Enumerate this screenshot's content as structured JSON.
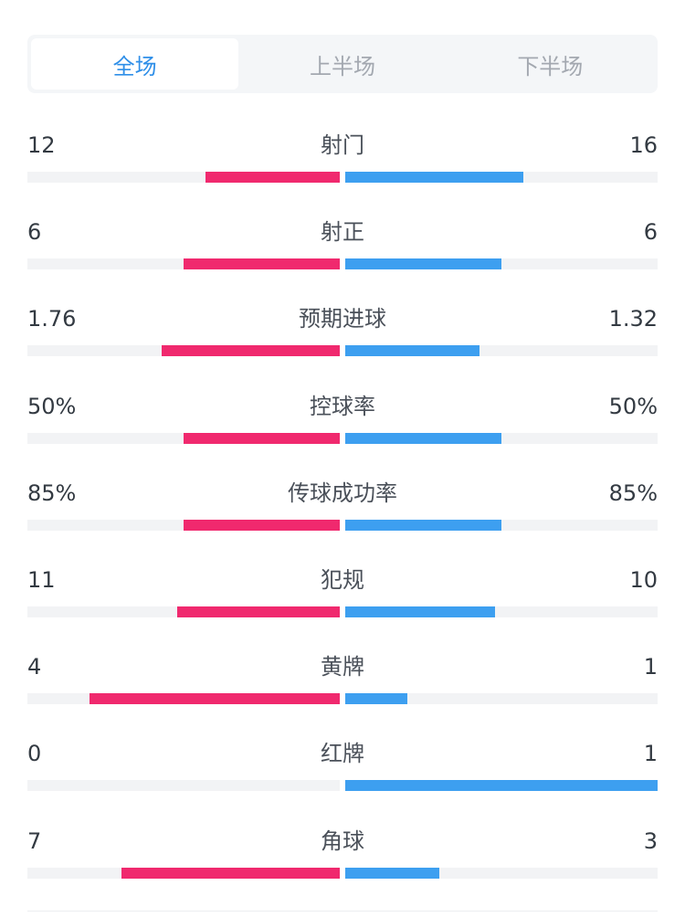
{
  "tabs": [
    {
      "label": "全场",
      "active": true
    },
    {
      "label": "上半场",
      "active": false
    },
    {
      "label": "下半场",
      "active": false
    }
  ],
  "colors": {
    "home": "#f0296e",
    "away": "#3d9ff0",
    "active_tab": "#2f8fe8"
  },
  "stats": [
    {
      "label": "射门",
      "home": "12",
      "away": "16",
      "home_fill": 0.43,
      "away_fill": 0.57
    },
    {
      "label": "射正",
      "home": "6",
      "away": "6",
      "home_fill": 0.5,
      "away_fill": 0.5
    },
    {
      "label": "预期进球",
      "home": "1.76",
      "away": "1.32",
      "home_fill": 0.57,
      "away_fill": 0.43
    },
    {
      "label": "控球率",
      "home": "50%",
      "away": "50%",
      "home_fill": 0.5,
      "away_fill": 0.5
    },
    {
      "label": "传球成功率",
      "home": "85%",
      "away": "85%",
      "home_fill": 0.5,
      "away_fill": 0.5
    },
    {
      "label": "犯规",
      "home": "11",
      "away": "10",
      "home_fill": 0.52,
      "away_fill": 0.48
    },
    {
      "label": "黄牌",
      "home": "4",
      "away": "1",
      "home_fill": 0.8,
      "away_fill": 0.2
    },
    {
      "label": "红牌",
      "home": "0",
      "away": "1",
      "home_fill": 0.0,
      "away_fill": 1.0
    },
    {
      "label": "角球",
      "home": "7",
      "away": "3",
      "home_fill": 0.7,
      "away_fill": 0.3
    }
  ]
}
